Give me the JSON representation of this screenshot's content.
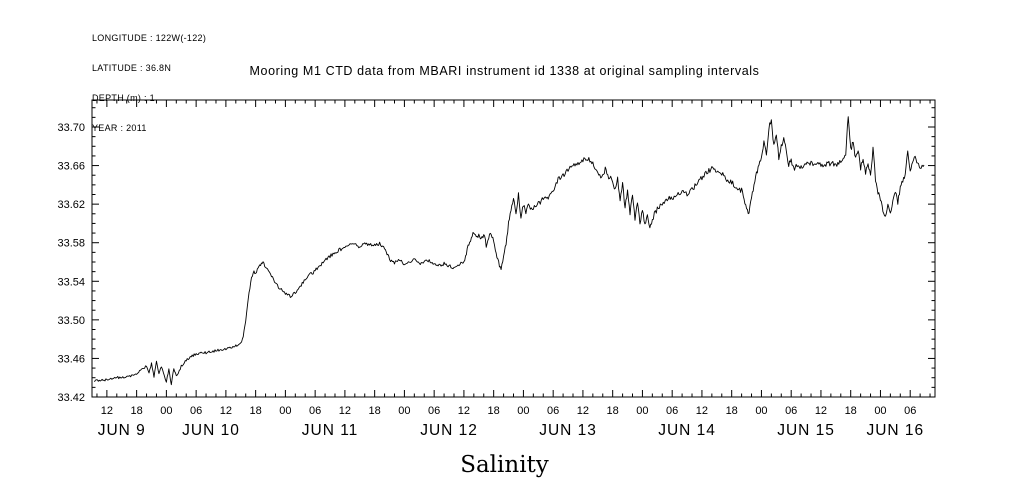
{
  "meta": {
    "lines": [
      "LONGITUDE : 122W(-122)",
      "LATITUDE : 36.8N",
      "DEPTH (m) : 1",
      "YEAR : 2011"
    ]
  },
  "title": "Mooring M1 CTD data from MBARI instrument id 1338 at original sampling intervals",
  "x_axis_title": "Salinity",
  "chart_data": {
    "type": "line",
    "title": "Mooring M1 CTD data from MBARI instrument id 1338 at original sampling intervals",
    "xlabel": "Salinity",
    "ylabel": "",
    "line_color": "#000000",
    "grid": false,
    "legend": "none",
    "x_unit": "hours since 2011-06-09 00:00",
    "x_range": [
      9,
      179
    ],
    "y_range": [
      33.42,
      33.728
    ],
    "y_minor_step": 0.01,
    "x_minor_step_hours": 2,
    "y_ticks": [
      {
        "value": 33.42,
        "label": "33.42"
      },
      {
        "value": 33.46,
        "label": "33.46"
      },
      {
        "value": 33.5,
        "label": "33.50"
      },
      {
        "value": 33.54,
        "label": "33.54"
      },
      {
        "value": 33.58,
        "label": "33.58"
      },
      {
        "value": 33.62,
        "label": "33.62"
      },
      {
        "value": 33.66,
        "label": "33.66"
      },
      {
        "value": 33.7,
        "label": "33.70"
      }
    ],
    "x_major_ticks": [
      {
        "hour": 12,
        "label": "12"
      },
      {
        "hour": 18,
        "label": "18"
      },
      {
        "hour": 24,
        "label": "00"
      },
      {
        "hour": 30,
        "label": "06"
      },
      {
        "hour": 36,
        "label": "12"
      },
      {
        "hour": 42,
        "label": "18"
      },
      {
        "hour": 48,
        "label": "00"
      },
      {
        "hour": 54,
        "label": "06"
      },
      {
        "hour": 60,
        "label": "12"
      },
      {
        "hour": 66,
        "label": "18"
      },
      {
        "hour": 72,
        "label": "00"
      },
      {
        "hour": 78,
        "label": "06"
      },
      {
        "hour": 84,
        "label": "12"
      },
      {
        "hour": 90,
        "label": "18"
      },
      {
        "hour": 96,
        "label": "00"
      },
      {
        "hour": 102,
        "label": "06"
      },
      {
        "hour": 108,
        "label": "12"
      },
      {
        "hour": 114,
        "label": "18"
      },
      {
        "hour": 120,
        "label": "00"
      },
      {
        "hour": 126,
        "label": "06"
      },
      {
        "hour": 132,
        "label": "12"
      },
      {
        "hour": 138,
        "label": "18"
      },
      {
        "hour": 144,
        "label": "00"
      },
      {
        "hour": 150,
        "label": "06"
      },
      {
        "hour": 156,
        "label": "12"
      },
      {
        "hour": 162,
        "label": "18"
      },
      {
        "hour": 168,
        "label": "00"
      },
      {
        "hour": 174,
        "label": "06"
      }
    ],
    "day_labels": [
      {
        "label": "JUN 9",
        "center_hour": 15
      },
      {
        "label": "JUN 10",
        "center_hour": 33
      },
      {
        "label": "JUN 11",
        "center_hour": 57
      },
      {
        "label": "JUN 12",
        "center_hour": 81
      },
      {
        "label": "JUN 13",
        "center_hour": 105
      },
      {
        "label": "JUN 14",
        "center_hour": 129
      },
      {
        "label": "JUN 15",
        "center_hour": 153
      },
      {
        "label": "JUN 16",
        "center_hour": 171
      }
    ],
    "noise_segments": [
      {
        "from": 9,
        "to": 39,
        "amp": 0.0013
      },
      {
        "from": 39,
        "to": 84,
        "amp": 0.0018
      },
      {
        "from": 84,
        "to": 179,
        "amp": 0.0028
      }
    ],
    "series": [
      {
        "name": "salinity",
        "points": [
          [
            9.5,
            33.437
          ],
          [
            12,
            33.438
          ],
          [
            14,
            33.44
          ],
          [
            16,
            33.441
          ],
          [
            18,
            33.444
          ],
          [
            19,
            33.448
          ],
          [
            20,
            33.452
          ],
          [
            20.5,
            33.446
          ],
          [
            21,
            33.455
          ],
          [
            21.5,
            33.441
          ],
          [
            22,
            33.458
          ],
          [
            22.5,
            33.443
          ],
          [
            23,
            33.452
          ],
          [
            24,
            33.436
          ],
          [
            24.5,
            33.448
          ],
          [
            25,
            33.432
          ],
          [
            25.5,
            33.45
          ],
          [
            26,
            33.441
          ],
          [
            27,
            33.452
          ],
          [
            28,
            33.458
          ],
          [
            29,
            33.462
          ],
          [
            30,
            33.465
          ],
          [
            32,
            33.466
          ],
          [
            34,
            33.468
          ],
          [
            36,
            33.47
          ],
          [
            38,
            33.473
          ],
          [
            39,
            33.476
          ],
          [
            39.5,
            33.481
          ],
          [
            40,
            33.5
          ],
          [
            40.5,
            33.52
          ],
          [
            41,
            33.54
          ],
          [
            41.5,
            33.55
          ],
          [
            42,
            33.548
          ],
          [
            42.5,
            33.553
          ],
          [
            43,
            33.557
          ],
          [
            43.5,
            33.56
          ],
          [
            44,
            33.555
          ],
          [
            45,
            33.548
          ],
          [
            46,
            33.538
          ],
          [
            47,
            33.532
          ],
          [
            48,
            33.528
          ],
          [
            49,
            33.524
          ],
          [
            50,
            33.528
          ],
          [
            51,
            33.535
          ],
          [
            52,
            33.542
          ],
          [
            53,
            33.547
          ],
          [
            54,
            33.551
          ],
          [
            55,
            33.556
          ],
          [
            56,
            33.562
          ],
          [
            57,
            33.566
          ],
          [
            58,
            33.57
          ],
          [
            59,
            33.573
          ],
          [
            60,
            33.575
          ],
          [
            61,
            33.577
          ],
          [
            62,
            33.578
          ],
          [
            63,
            33.576
          ],
          [
            64,
            33.58
          ],
          [
            65,
            33.578
          ],
          [
            66,
            33.577
          ],
          [
            67,
            33.579
          ],
          [
            68,
            33.575
          ],
          [
            68.5,
            33.569
          ],
          [
            69,
            33.563
          ],
          [
            70,
            33.559
          ],
          [
            71,
            33.562
          ],
          [
            72,
            33.558
          ],
          [
            73,
            33.561
          ],
          [
            74,
            33.562
          ],
          [
            75,
            33.558
          ],
          [
            76,
            33.561
          ],
          [
            77,
            33.561
          ],
          [
            78,
            33.558
          ],
          [
            79,
            33.556
          ],
          [
            80,
            33.558
          ],
          [
            81,
            33.556
          ],
          [
            82,
            33.553
          ],
          [
            83,
            33.556
          ],
          [
            84,
            33.561
          ],
          [
            84.5,
            33.57
          ],
          [
            85,
            33.578
          ],
          [
            85.5,
            33.585
          ],
          [
            86,
            33.59
          ],
          [
            86.5,
            33.584
          ],
          [
            87,
            33.59
          ],
          [
            87.5,
            33.582
          ],
          [
            88,
            33.588
          ],
          [
            88.5,
            33.578
          ],
          [
            89,
            33.586
          ],
          [
            89.5,
            33.59
          ],
          [
            90,
            33.584
          ],
          [
            90.5,
            33.57
          ],
          [
            91,
            33.559
          ],
          [
            91.5,
            33.552
          ],
          [
            92,
            33.566
          ],
          [
            92.5,
            33.58
          ],
          [
            93,
            33.6
          ],
          [
            93.5,
            33.615
          ],
          [
            94,
            33.625
          ],
          [
            94.5,
            33.609
          ],
          [
            95,
            33.63
          ],
          [
            95.5,
            33.606
          ],
          [
            96,
            33.62
          ],
          [
            96.5,
            33.612
          ],
          [
            97,
            33.618
          ],
          [
            98,
            33.615
          ],
          [
            99,
            33.62
          ],
          [
            100,
            33.625
          ],
          [
            101,
            33.628
          ],
          [
            102,
            33.635
          ],
          [
            103,
            33.645
          ],
          [
            104,
            33.65
          ],
          [
            105,
            33.655
          ],
          [
            106,
            33.66
          ],
          [
            107,
            33.663
          ],
          [
            108,
            33.666
          ],
          [
            109,
            33.668
          ],
          [
            110,
            33.663
          ],
          [
            111,
            33.652
          ],
          [
            112,
            33.648
          ],
          [
            112.5,
            33.656
          ],
          [
            113,
            33.65
          ],
          [
            114,
            33.645
          ],
          [
            114.5,
            33.634
          ],
          [
            115,
            33.646
          ],
          [
            115.5,
            33.625
          ],
          [
            116,
            33.641
          ],
          [
            116.5,
            33.616
          ],
          [
            117,
            33.636
          ],
          [
            117.5,
            33.61
          ],
          [
            118,
            33.63
          ],
          [
            118.5,
            33.605
          ],
          [
            119,
            33.621
          ],
          [
            119.5,
            33.6
          ],
          [
            120,
            33.616
          ],
          [
            120.5,
            33.598
          ],
          [
            121,
            33.609
          ],
          [
            121.5,
            33.595
          ],
          [
            122,
            33.605
          ],
          [
            123,
            33.615
          ],
          [
            124,
            33.62
          ],
          [
            125,
            33.625
          ],
          [
            126,
            33.626
          ],
          [
            127,
            33.63
          ],
          [
            128,
            33.632
          ],
          [
            129,
            33.631
          ],
          [
            130,
            33.635
          ],
          [
            131,
            33.641
          ],
          [
            132,
            33.648
          ],
          [
            133,
            33.653
          ],
          [
            134,
            33.657
          ],
          [
            135,
            33.655
          ],
          [
            136,
            33.651
          ],
          [
            137,
            33.646
          ],
          [
            138,
            33.642
          ],
          [
            139,
            33.638
          ],
          [
            140,
            33.634
          ],
          [
            140.5,
            33.625
          ],
          [
            141,
            33.615
          ],
          [
            141.5,
            33.61
          ],
          [
            142,
            33.626
          ],
          [
            142.5,
            33.64
          ],
          [
            143,
            33.652
          ],
          [
            143.5,
            33.661
          ],
          [
            144,
            33.668
          ],
          [
            144.5,
            33.685
          ],
          [
            145,
            33.671
          ],
          [
            145.5,
            33.7
          ],
          [
            146,
            33.705
          ],
          [
            146.5,
            33.681
          ],
          [
            147,
            33.691
          ],
          [
            147.5,
            33.668
          ],
          [
            148,
            33.679
          ],
          [
            148.5,
            33.69
          ],
          [
            149,
            33.676
          ],
          [
            149.5,
            33.661
          ],
          [
            150,
            33.666
          ],
          [
            150.5,
            33.656
          ],
          [
            151,
            33.661
          ],
          [
            152,
            33.659
          ],
          [
            153,
            33.661
          ],
          [
            154,
            33.663
          ],
          [
            155,
            33.661
          ],
          [
            156,
            33.66
          ],
          [
            157,
            33.661
          ],
          [
            158,
            33.662
          ],
          [
            159,
            33.661
          ],
          [
            160,
            33.663
          ],
          [
            160.5,
            33.668
          ],
          [
            161,
            33.672
          ],
          [
            161.5,
            33.712
          ],
          [
            162,
            33.676
          ],
          [
            162.5,
            33.686
          ],
          [
            163,
            33.666
          ],
          [
            163.5,
            33.676
          ],
          [
            164,
            33.658
          ],
          [
            164.5,
            33.669
          ],
          [
            165,
            33.652
          ],
          [
            165.5,
            33.663
          ],
          [
            166,
            33.648
          ],
          [
            166.5,
            33.678
          ],
          [
            167,
            33.645
          ],
          [
            167.5,
            33.632
          ],
          [
            168,
            33.625
          ],
          [
            168.5,
            33.612
          ],
          [
            169,
            33.605
          ],
          [
            169.5,
            33.618
          ],
          [
            170,
            33.608
          ],
          [
            170.5,
            33.625
          ],
          [
            171,
            33.632
          ],
          [
            171.5,
            33.621
          ],
          [
            172,
            33.638
          ],
          [
            172.5,
            33.645
          ],
          [
            173,
            33.651
          ],
          [
            173.5,
            33.675
          ],
          [
            174,
            33.656
          ],
          [
            174.5,
            33.663
          ],
          [
            175,
            33.668
          ],
          [
            175.5,
            33.661
          ],
          [
            176,
            33.658
          ],
          [
            176.8,
            33.66
          ]
        ]
      }
    ]
  }
}
